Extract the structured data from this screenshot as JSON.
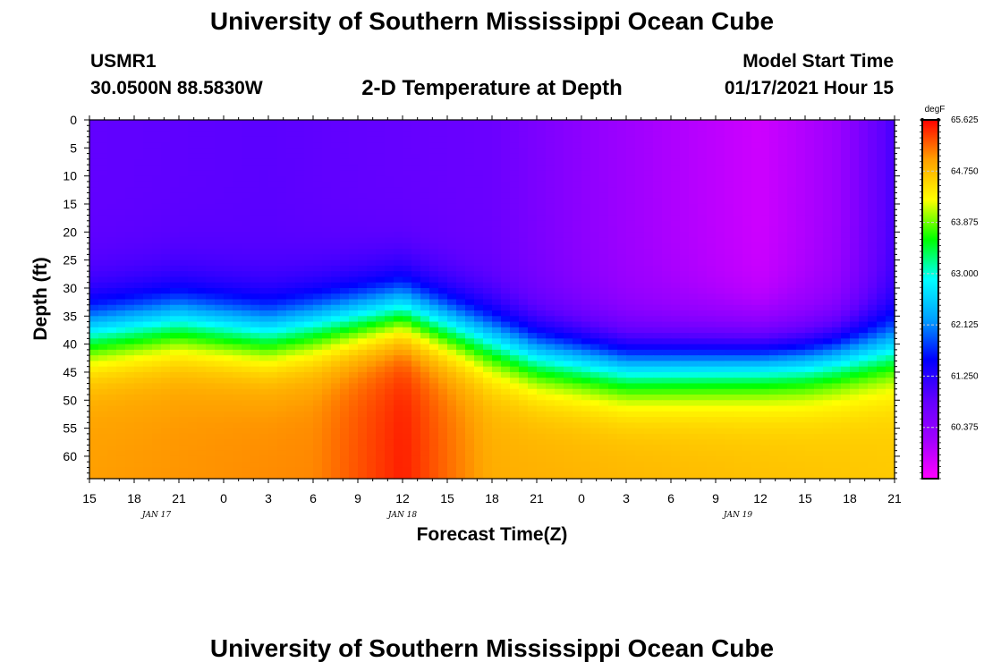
{
  "page": {
    "title_top": "University of Southern Mississippi Ocean Cube",
    "title_bottom": "University of Southern Mississippi Ocean Cube",
    "station": "USMR1",
    "coords": "30.0500N 88.5830W",
    "model_start_label": "Model Start Time",
    "model_start_value": "01/17/2021 Hour 15"
  },
  "chart_data": {
    "type": "heatmap",
    "title": "2-D Temperature at Depth",
    "xlabel": "Forecast Time(Z)",
    "ylabel": "Depth (ft)",
    "units": "degF",
    "x_tick_labels": [
      "15",
      "18",
      "21",
      "0",
      "3",
      "6",
      "9",
      "12",
      "15",
      "18",
      "21",
      "0",
      "3",
      "6",
      "9",
      "12",
      "15",
      "18",
      "21"
    ],
    "x_range_hours": [
      0,
      54
    ],
    "date_labels": [
      {
        "text": "JAN 17",
        "hour": 4.5
      },
      {
        "text": "JAN 18",
        "hour": 21
      },
      {
        "text": "JAN 19",
        "hour": 43.5
      }
    ],
    "y_tick_labels": [
      "0",
      "5",
      "10",
      "15",
      "20",
      "25",
      "30",
      "35",
      "40",
      "45",
      "50",
      "55",
      "60"
    ],
    "y_range_ft": [
      0,
      64
    ],
    "colorbar": {
      "range": [
        59.5,
        65.625
      ],
      "tick_values": [
        60.375,
        61.25,
        62.125,
        63.0,
        63.875,
        64.75,
        65.625
      ],
      "tick_labels": [
        "60.375",
        "61.250",
        "62.125",
        "63.000",
        "63.875",
        "64.750",
        "65.625"
      ],
      "colors": [
        "#ff00ff",
        "#a000ff",
        "#6000ff",
        "#0000ff",
        "#00a0ff",
        "#00ffff",
        "#00ff00",
        "#ffff00",
        "#ffa000",
        "#ff0000"
      ]
    },
    "thermocline_depth_ft": [
      {
        "hour": 0,
        "depth": 38
      },
      {
        "hour": 6,
        "depth": 36
      },
      {
        "hour": 12,
        "depth": 38
      },
      {
        "hour": 21,
        "depth": 34
      },
      {
        "hour": 30,
        "depth": 42
      },
      {
        "hour": 36,
        "depth": 44
      },
      {
        "hour": 48,
        "depth": 43
      },
      {
        "hour": 54,
        "depth": 41
      }
    ],
    "surface_temp_degF": [
      {
        "hour": 0,
        "value": 60.85
      },
      {
        "hour": 12,
        "value": 60.9
      },
      {
        "hour": 27,
        "value": 60.75
      },
      {
        "hour": 36,
        "value": 60.2
      },
      {
        "hour": 45,
        "value": 59.85
      },
      {
        "hour": 50,
        "value": 60.2
      },
      {
        "hour": 54,
        "value": 61.05
      }
    ],
    "bottom_temp_degF": [
      {
        "hour": 0,
        "value": 64.95
      },
      {
        "hour": 15,
        "value": 65.05
      },
      {
        "hour": 21,
        "value": 65.5
      },
      {
        "hour": 27,
        "value": 64.85
      },
      {
        "hour": 54,
        "value": 64.65
      }
    ]
  }
}
